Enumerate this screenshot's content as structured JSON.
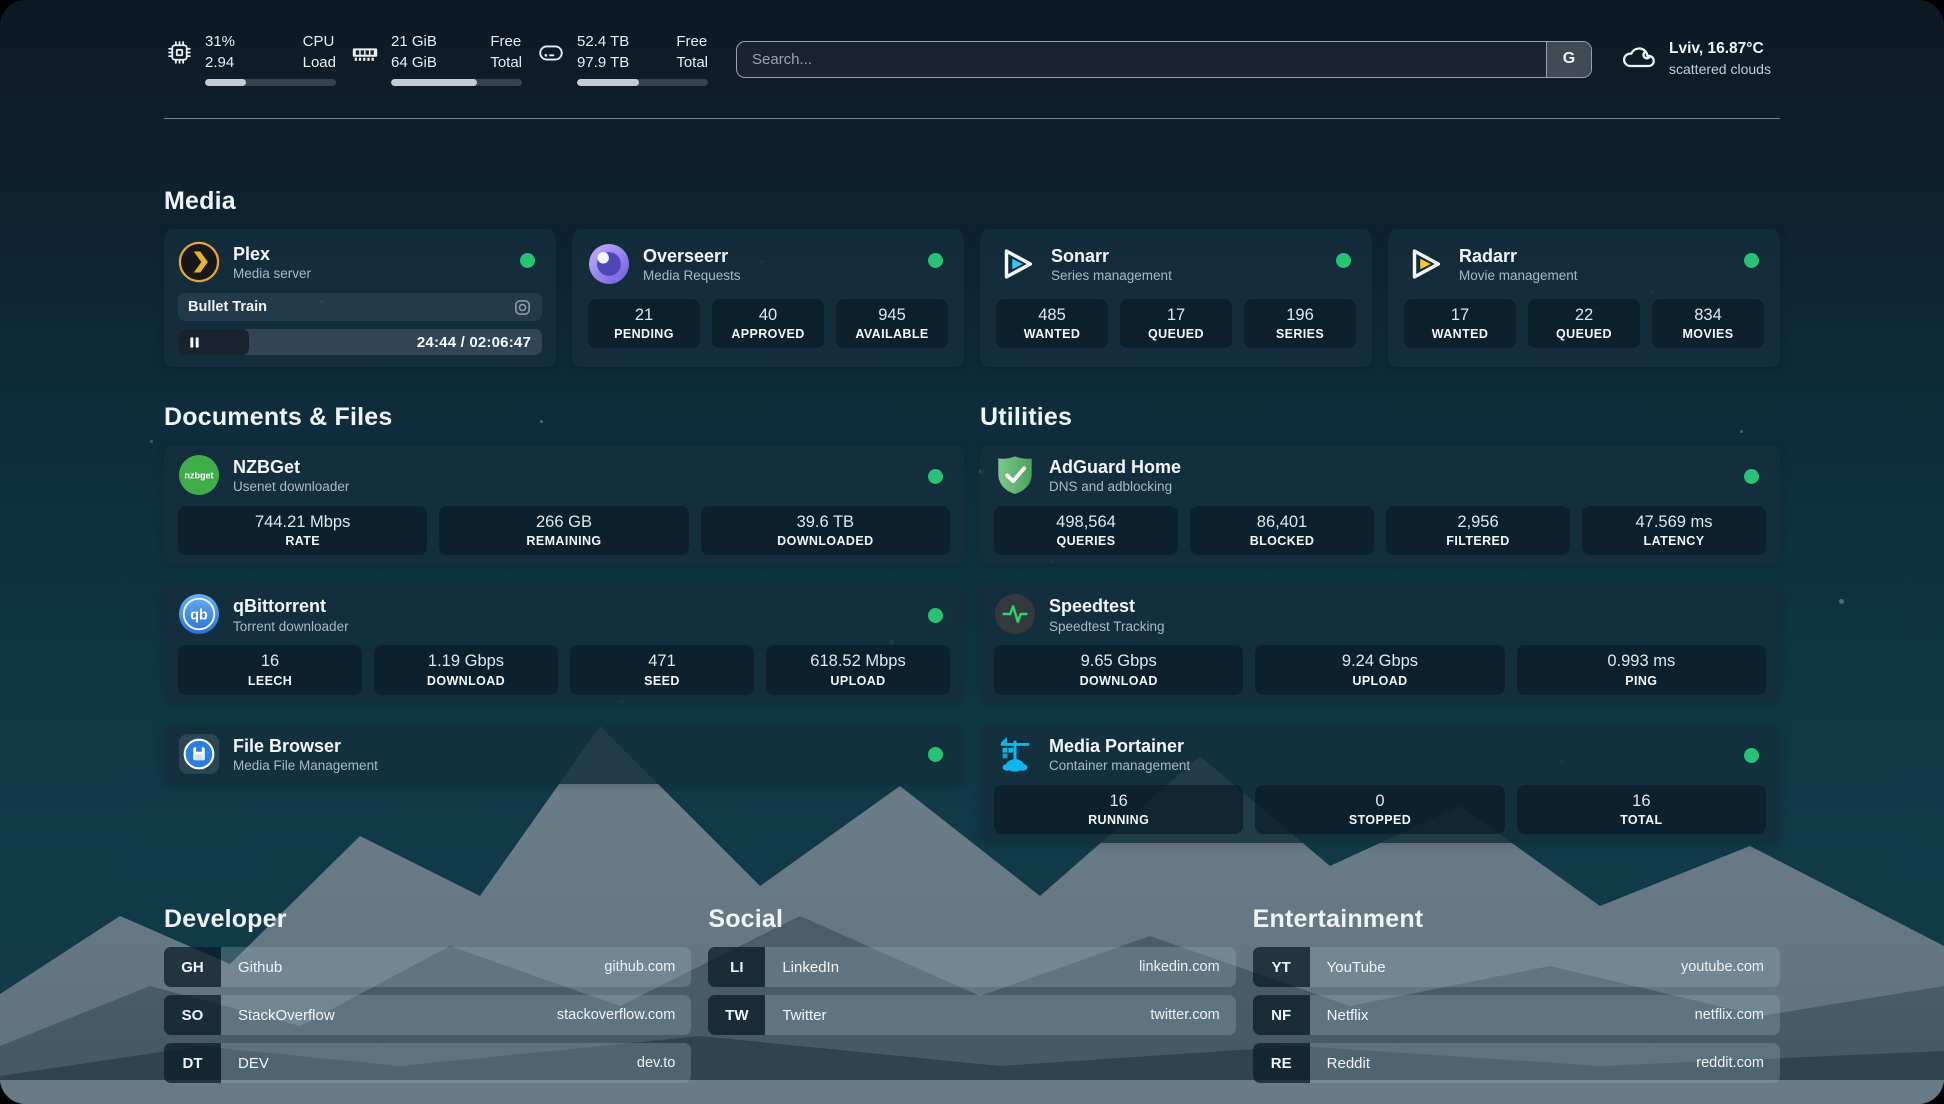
{
  "header": {
    "stats": [
      {
        "id": "cpu",
        "icon": "cpu-icon",
        "values": [
          "31%",
          "2.94"
        ],
        "labels": [
          "CPU",
          "Load"
        ],
        "progress": 31
      },
      {
        "id": "memory",
        "icon": "ram-icon",
        "values": [
          "21 GiB",
          "64 GiB"
        ],
        "labels": [
          "Free",
          "Total"
        ],
        "progress": 66
      },
      {
        "id": "disk",
        "icon": "disk-icon",
        "values": [
          "52.4 TB",
          "97.9 TB"
        ],
        "labels": [
          "Free",
          "Total"
        ],
        "progress": 47
      }
    ],
    "search": {
      "placeholder": "Search...",
      "button": "G"
    },
    "weather": {
      "icon": "cloud-icon",
      "title": "Lviv, 16.87°C",
      "subtitle": "scattered clouds"
    }
  },
  "media": {
    "title": "Media",
    "apps": [
      {
        "icon": "plex-icon",
        "name": "Plex",
        "subtitle": "Media server",
        "online": true,
        "now_playing": {
          "title": "Bullet Train",
          "time": "24:44 / 02:06:47",
          "progress": 19.5
        }
      },
      {
        "icon": "overseerr-icon",
        "name": "Overseerr",
        "subtitle": "Media Requests",
        "online": true,
        "stats": [
          {
            "value": "21",
            "label": "PENDING"
          },
          {
            "value": "40",
            "label": "APPROVED"
          },
          {
            "value": "945",
            "label": "AVAILABLE"
          }
        ]
      },
      {
        "icon": "sonarr-icon",
        "name": "Sonarr",
        "subtitle": "Series management",
        "online": true,
        "stats": [
          {
            "value": "485",
            "label": "WANTED"
          },
          {
            "value": "17",
            "label": "QUEUED"
          },
          {
            "value": "196",
            "label": "SERIES"
          }
        ]
      },
      {
        "icon": "radarr-icon",
        "name": "Radarr",
        "subtitle": "Movie management",
        "online": true,
        "stats": [
          {
            "value": "17",
            "label": "WANTED"
          },
          {
            "value": "22",
            "label": "QUEUED"
          },
          {
            "value": "834",
            "label": "MOVIES"
          }
        ]
      }
    ]
  },
  "documents": {
    "title": "Documents & Files",
    "apps": [
      {
        "icon": "nzbget-icon",
        "name": "NZBGet",
        "subtitle": "Usenet downloader",
        "online": true,
        "stats": [
          {
            "value": "744.21 Mbps",
            "label": "RATE"
          },
          {
            "value": "266 GB",
            "label": "REMAINING"
          },
          {
            "value": "39.6 TB",
            "label": "DOWNLOADED"
          }
        ]
      },
      {
        "icon": "qbittorrent-icon",
        "name": "qBittorrent",
        "subtitle": "Torrent downloader",
        "online": true,
        "stats": [
          {
            "value": "16",
            "label": "LEECH"
          },
          {
            "value": "1.19 Gbps",
            "label": "DOWNLOAD"
          },
          {
            "value": "471",
            "label": "SEED"
          },
          {
            "value": "618.52 Mbps",
            "label": "UPLOAD"
          }
        ]
      },
      {
        "icon": "filebrowser-icon",
        "name": "File Browser",
        "subtitle": "Media File Management",
        "online": true,
        "compact": true
      }
    ]
  },
  "utilities": {
    "title": "Utilities",
    "apps": [
      {
        "icon": "adguard-icon",
        "name": "AdGuard Home",
        "subtitle": "DNS and adblocking",
        "online": true,
        "stats": [
          {
            "value": "498,564",
            "label": "QUERIES"
          },
          {
            "value": "86,401",
            "label": "BLOCKED"
          },
          {
            "value": "2,956",
            "label": "FILTERED"
          },
          {
            "value": "47.569 ms",
            "label": "LATENCY"
          }
        ]
      },
      {
        "icon": "speedtest-icon",
        "name": "Speedtest",
        "subtitle": "Speedtest Tracking",
        "online": false,
        "stats": [
          {
            "value": "9.65 Gbps",
            "label": "DOWNLOAD"
          },
          {
            "value": "9.24 Gbps",
            "label": "UPLOAD"
          },
          {
            "value": "0.993 ms",
            "label": "PING"
          }
        ]
      },
      {
        "icon": "portainer-icon",
        "name": "Media Portainer",
        "subtitle": "Container management",
        "online": true,
        "stats": [
          {
            "value": "16",
            "label": "RUNNING"
          },
          {
            "value": "0",
            "label": "STOPPED"
          },
          {
            "value": "16",
            "label": "TOTAL"
          }
        ]
      }
    ]
  },
  "bookmarks": [
    {
      "title": "Developer",
      "items": [
        {
          "abbr": "GH",
          "name": "Github",
          "url": "github.com"
        },
        {
          "abbr": "SO",
          "name": "StackOverflow",
          "url": "stackoverflow.com"
        },
        {
          "abbr": "DT",
          "name": "DEV",
          "url": "dev.to"
        }
      ]
    },
    {
      "title": "Social",
      "items": [
        {
          "abbr": "LI",
          "name": "LinkedIn",
          "url": "linkedin.com"
        },
        {
          "abbr": "TW",
          "name": "Twitter",
          "url": "twitter.com"
        }
      ]
    },
    {
      "title": "Entertainment",
      "items": [
        {
          "abbr": "YT",
          "name": "YouTube",
          "url": "youtube.com"
        },
        {
          "abbr": "NF",
          "name": "Netflix",
          "url": "netflix.com"
        },
        {
          "abbr": "RE",
          "name": "Reddit",
          "url": "reddit.com"
        }
      ]
    }
  ],
  "colors": {
    "status_online": "#27c273",
    "plex_amber": "#e8a33d",
    "sonarr_blue": "#35c5f1",
    "radarr_yellow": "#ffc230",
    "nzbget_green": "#3fae49",
    "qbittorrent_blue": "#2b6fd4",
    "adguard_green": "#5fae68",
    "speedtest_pulse": "#2dd36f",
    "portainer_blue": "#0db7ed",
    "filebrowser_blue": "#2a7de1"
  }
}
